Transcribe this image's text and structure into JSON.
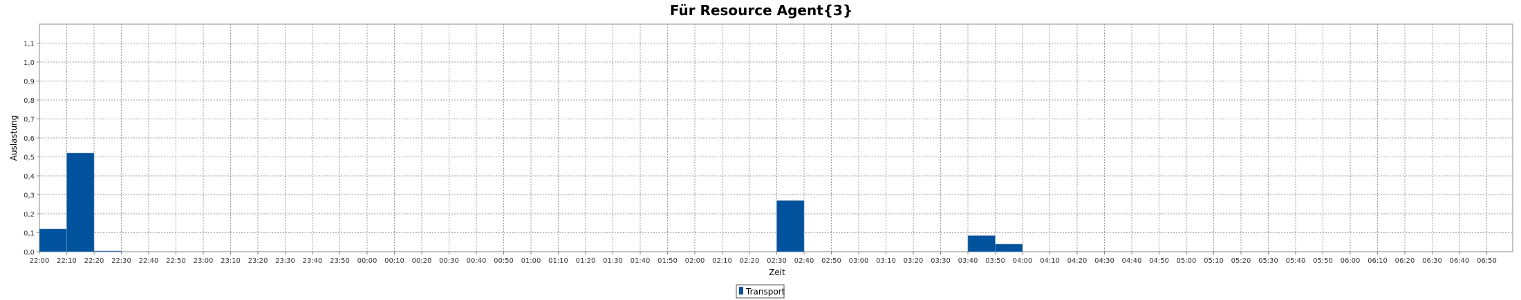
{
  "chart_data": {
    "type": "bar",
    "title": "Für Resource Agent{3}",
    "xlabel": "Zeit",
    "ylabel": "Auslastung",
    "ylim": [
      0,
      1.2
    ],
    "yticks": [
      "0,0",
      "0,1",
      "0,2",
      "0,3",
      "0,4",
      "0,5",
      "0,6",
      "0,7",
      "0,8",
      "0,9",
      "1,0",
      "1,1"
    ],
    "grid": true,
    "legend_position": "bottom",
    "categories": [
      "22:00",
      "22:10",
      "22:20",
      "22:30",
      "22:40",
      "22:50",
      "23:00",
      "23:10",
      "23:20",
      "23:30",
      "23:40",
      "23:50",
      "00:00",
      "00:10",
      "00:20",
      "00:30",
      "00:40",
      "00:50",
      "01:00",
      "01:10",
      "01:20",
      "01:30",
      "01:40",
      "01:50",
      "02:00",
      "02:10",
      "02:20",
      "02:30",
      "02:40",
      "02:50",
      "03:00",
      "03:10",
      "03:20",
      "03:30",
      "03:40",
      "03:50",
      "04:00",
      "04:10",
      "04:20",
      "04:30",
      "04:40",
      "04:50",
      "05:00",
      "05:10",
      "05:20",
      "05:30",
      "05:40",
      "05:50",
      "06:00",
      "06:10",
      "06:20",
      "06:30",
      "06:40",
      "06:50"
    ],
    "series": [
      {
        "name": "Transport",
        "color": "#00529C",
        "bars": [
          {
            "start": "22:00",
            "end": "22:10",
            "value": 0.12
          },
          {
            "start": "22:10",
            "end": "22:20",
            "value": 0.52
          },
          {
            "start": "22:20",
            "end": "22:30",
            "value": 0.003
          },
          {
            "start": "02:30",
            "end": "02:40",
            "value": 0.27
          },
          {
            "start": "03:40",
            "end": "03:50",
            "value": 0.085
          },
          {
            "start": "03:50",
            "end": "04:00",
            "value": 0.04
          }
        ]
      }
    ]
  }
}
